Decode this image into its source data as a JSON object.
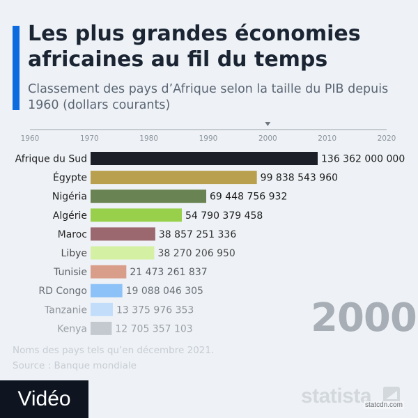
{
  "header": {
    "title": "Les plus grandes économies africaines au fil du temps",
    "subtitle": "Classement des pays d’Afrique selon la taille du PIB depuis 1960 (dollars courants)"
  },
  "timeline": {
    "ticks": [
      "1960",
      "1970",
      "1980",
      "1990",
      "2000",
      "2010",
      "2020"
    ],
    "range": [
      1960,
      2020
    ],
    "current": 2000
  },
  "chart_data": {
    "type": "bar",
    "orientation": "horizontal",
    "year": "2000",
    "categories": [
      "Afrique du Sud",
      "Égypte",
      "Nigéria",
      "Algérie",
      "Maroc",
      "Libye",
      "Tunisie",
      "RD Congo",
      "Tanzanie",
      "Kenya"
    ],
    "values": [
      136362000000,
      99838543960,
      69448756932,
      54790379458,
      38857251336,
      38270206950,
      21473261837,
      19088046305,
      13375976353,
      12705357103
    ],
    "value_labels": [
      "136 362 000 000",
      "99 838 543 960",
      "69 448 756 932",
      "54 790 379 458",
      "38 857 251 336",
      "38 270 206 950",
      "21 473 261 837",
      "19 088 046 305",
      "13 375 976 353",
      "12 705 357 103"
    ],
    "colors": [
      "#1c1f28",
      "#b8a04e",
      "#6a8352",
      "#99d04b",
      "#9c6870",
      "#d4f0a3",
      "#d99e8a",
      "#8cc2f7",
      "#c2ddfa",
      "#c4c9cf"
    ],
    "label_colors": [
      "#1b1b1b",
      "#1b1b1b",
      "#1b1b1b",
      "#1b1b1b",
      "#2b2b2b",
      "#4a4a4a",
      "#5a5f66",
      "#6a7078",
      "#8d939a",
      "#9aa0a7"
    ],
    "xlim": [
      0,
      136362000000
    ]
  },
  "footer": {
    "notes": [
      "Noms des pays tels qu’en décembre 2021.",
      "Source : Banque mondiale"
    ],
    "video_label": "Vidéo",
    "logo_text": "statista",
    "credit": "statcdn.com"
  }
}
